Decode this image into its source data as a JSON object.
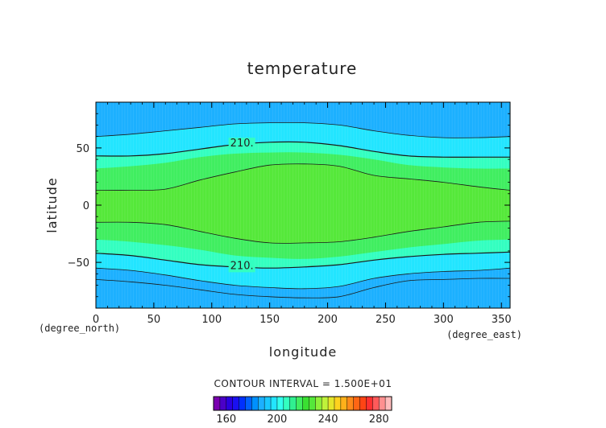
{
  "chart_data": {
    "type": "heatmap",
    "title": "temperature",
    "xlabel": "longitude",
    "ylabel": "latitude",
    "x_unit": "(degree_east)",
    "y_unit": "(degree_north)",
    "xlim": [
      0,
      357.5
    ],
    "ylim": [
      -90,
      90
    ],
    "x_ticks": [
      0,
      50,
      100,
      150,
      200,
      250,
      300,
      350
    ],
    "y_ticks": [
      -50,
      0,
      50
    ],
    "contour_interval_text": "CONTOUR INTERVAL = 1.500E+01",
    "contour_interval": 15,
    "contour_labels": [
      {
        "text": "210.",
        "x": 126,
        "y": 54
      },
      {
        "text": "210.",
        "x": 126,
        "y": -53
      }
    ],
    "colorbar": {
      "tick_labels": [
        "160",
        "200",
        "240",
        "280"
      ],
      "levels": [
        150,
        155,
        160,
        165,
        170,
        175,
        180,
        185,
        190,
        195,
        200,
        205,
        210,
        215,
        220,
        225,
        230,
        235,
        240,
        245,
        250,
        255,
        260,
        265,
        270,
        275,
        280,
        285,
        290
      ],
      "colors": [
        "#7a00b0",
        "#4b00c8",
        "#2a00e0",
        "#1a10f0",
        "#0030ff",
        "#0060ff",
        "#0090ff",
        "#1cb0ff",
        "#19c8ff",
        "#22e5ff",
        "#33ffee",
        "#33ffc0",
        "#30f090",
        "#40ee60",
        "#3ae032",
        "#55e83a",
        "#8ef03a",
        "#bff23a",
        "#e5e52a",
        "#ffd21e",
        "#ffb01a",
        "#ff8a1a",
        "#ff6614",
        "#ff4414",
        "#ff3030",
        "#ff5a5a",
        "#ff9090",
        "#ffbcbc"
      ]
    },
    "temperature_bands": [
      {
        "range": "below 195",
        "color": "#1cb0ff"
      },
      {
        "range": "195-210",
        "color": "#22e5ff"
      },
      {
        "range": "210-225",
        "color": "#33ffc0"
      },
      {
        "range": "225-240",
        "color": "#40ee60"
      },
      {
        "range": "240-255",
        "color": "#55e83a"
      }
    ],
    "boundaries": {
      "x": [
        0,
        30,
        60,
        90,
        120,
        150,
        180,
        210,
        240,
        270,
        300,
        330,
        357.5
      ],
      "north_195": [
        60,
        62,
        65,
        68,
        71,
        72,
        72,
        70,
        65,
        61,
        59,
        59,
        60
      ],
      "north_210": [
        43,
        43,
        45,
        49,
        53,
        55,
        55,
        52,
        47,
        43,
        42,
        42,
        42
      ],
      "north_225": [
        32,
        34,
        37,
        42,
        45,
        46,
        46,
        44,
        40,
        35,
        33,
        32,
        32
      ],
      "north_240": [
        13,
        13,
        14,
        22,
        29,
        35,
        36,
        34,
        26,
        23,
        20,
        16,
        13
      ],
      "south_240": [
        -15,
        -15,
        -17,
        -23,
        -29,
        -33,
        -33,
        -32,
        -28,
        -23,
        -19,
        -15,
        -14
      ],
      "south_225": [
        -30,
        -32,
        -35,
        -39,
        -44,
        -46,
        -47,
        -45,
        -41,
        -37,
        -34,
        -31,
        -30
      ],
      "south_210": [
        -42,
        -44,
        -48,
        -52,
        -54,
        -55,
        -54,
        -52,
        -48,
        -45,
        -43,
        -42,
        -41
      ],
      "south_195": [
        -55,
        -57,
        -61,
        -66,
        -70,
        -72,
        -73,
        -71,
        -64,
        -60,
        -58,
        -57,
        -55
      ],
      "south_180": [
        -65,
        -67,
        -70,
        -74,
        -78,
        -80,
        -81,
        -80,
        -72,
        -66,
        -65,
        -64,
        -64
      ]
    }
  }
}
